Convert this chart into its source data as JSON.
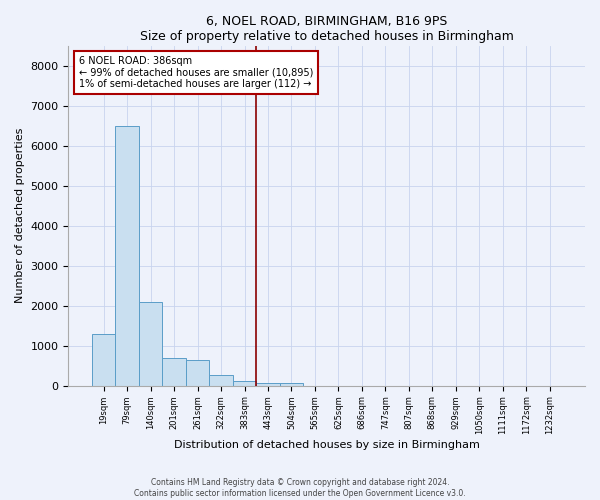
{
  "title": "6, NOEL ROAD, BIRMINGHAM, B16 9PS",
  "subtitle": "Size of property relative to detached houses in Birmingham",
  "xlabel": "Distribution of detached houses by size in Birmingham",
  "ylabel": "Number of detached properties",
  "categories": [
    "19sqm",
    "79sqm",
    "140sqm",
    "201sqm",
    "261sqm",
    "322sqm",
    "383sqm",
    "443sqm",
    "504sqm",
    "565sqm",
    "625sqm",
    "686sqm",
    "747sqm",
    "807sqm",
    "868sqm",
    "929sqm",
    "1050sqm",
    "1111sqm",
    "1172sqm",
    "1232sqm"
  ],
  "values": [
    1300,
    6500,
    2100,
    700,
    650,
    270,
    110,
    80,
    60,
    0,
    0,
    0,
    0,
    0,
    0,
    0,
    0,
    0,
    0,
    0
  ],
  "bar_color": "#c9dff0",
  "bar_edge_color": "#5a9dc8",
  "highlight_index": 6,
  "red_line_color": "#8b0000",
  "annotation_line1": "6 NOEL ROAD: 386sqm",
  "annotation_line2": "← 99% of detached houses are smaller (10,895)",
  "annotation_line3": "1% of semi-detached houses are larger (112) →",
  "annotation_box_color": "#ffffff",
  "annotation_box_edge_color": "#aa0000",
  "ylim": [
    0,
    8500
  ],
  "yticks": [
    0,
    1000,
    2000,
    3000,
    4000,
    5000,
    6000,
    7000,
    8000
  ],
  "footer_line1": "Contains HM Land Registry data © Crown copyright and database right 2024.",
  "footer_line2": "Contains public sector information licensed under the Open Government Licence v3.0.",
  "background_color": "#eef2fb",
  "grid_color": "#c8d4ee"
}
